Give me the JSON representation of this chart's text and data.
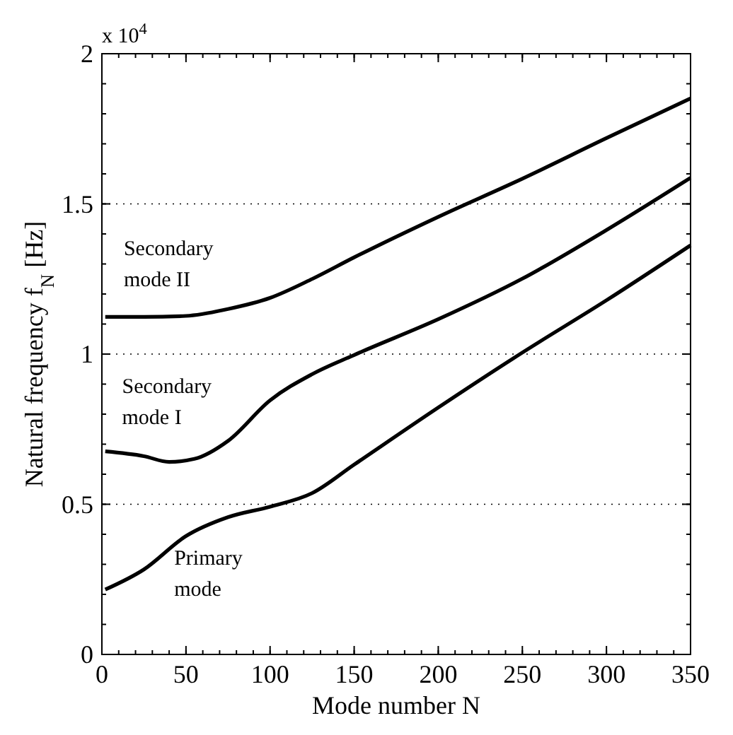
{
  "chart_data": {
    "type": "line",
    "xlabel": "Mode number N",
    "ylabel": "Natural frequency f$_{N}$ [Hz]",
    "annotations": [
      "x 10$^{4}$"
    ],
    "xlim": [
      0,
      350
    ],
    "xticks": [
      0,
      50,
      100,
      150,
      200,
      250,
      300,
      350
    ],
    "ylim": [
      0,
      2
    ],
    "yticks": [
      0,
      0.5,
      1,
      1.5,
      2
    ],
    "grid": "y",
    "line_style": "solid",
    "marker": "none",
    "x": [
      2,
      25,
      50,
      75,
      100,
      125,
      150,
      200,
      250,
      300,
      350
    ],
    "series": [
      {
        "name": "Primary mode",
        "color": "#000000",
        "values": [
          0.216,
          0.283,
          0.394,
          0.457,
          0.492,
          0.537,
          0.632,
          0.822,
          1.005,
          1.179,
          1.362
        ]
      },
      {
        "name": "Secondary mode I",
        "color": "#000000",
        "x": [
          2,
          25,
          40,
          55,
          75,
          100,
          125,
          150,
          200,
          250,
          300,
          350
        ],
        "values": [
          0.676,
          0.66,
          0.641,
          0.651,
          0.711,
          0.846,
          0.933,
          0.997,
          1.116,
          1.251,
          1.413,
          1.587
        ]
      },
      {
        "name": "Secondary mode II",
        "color": "#000000",
        "x": [
          2,
          25,
          50,
          75,
          100,
          125,
          150,
          200,
          250,
          300,
          350
        ],
        "values": [
          1.124,
          1.124,
          1.127,
          1.15,
          1.187,
          1.25,
          1.322,
          1.457,
          1.584,
          1.719,
          1.851
        ]
      }
    ]
  }
}
